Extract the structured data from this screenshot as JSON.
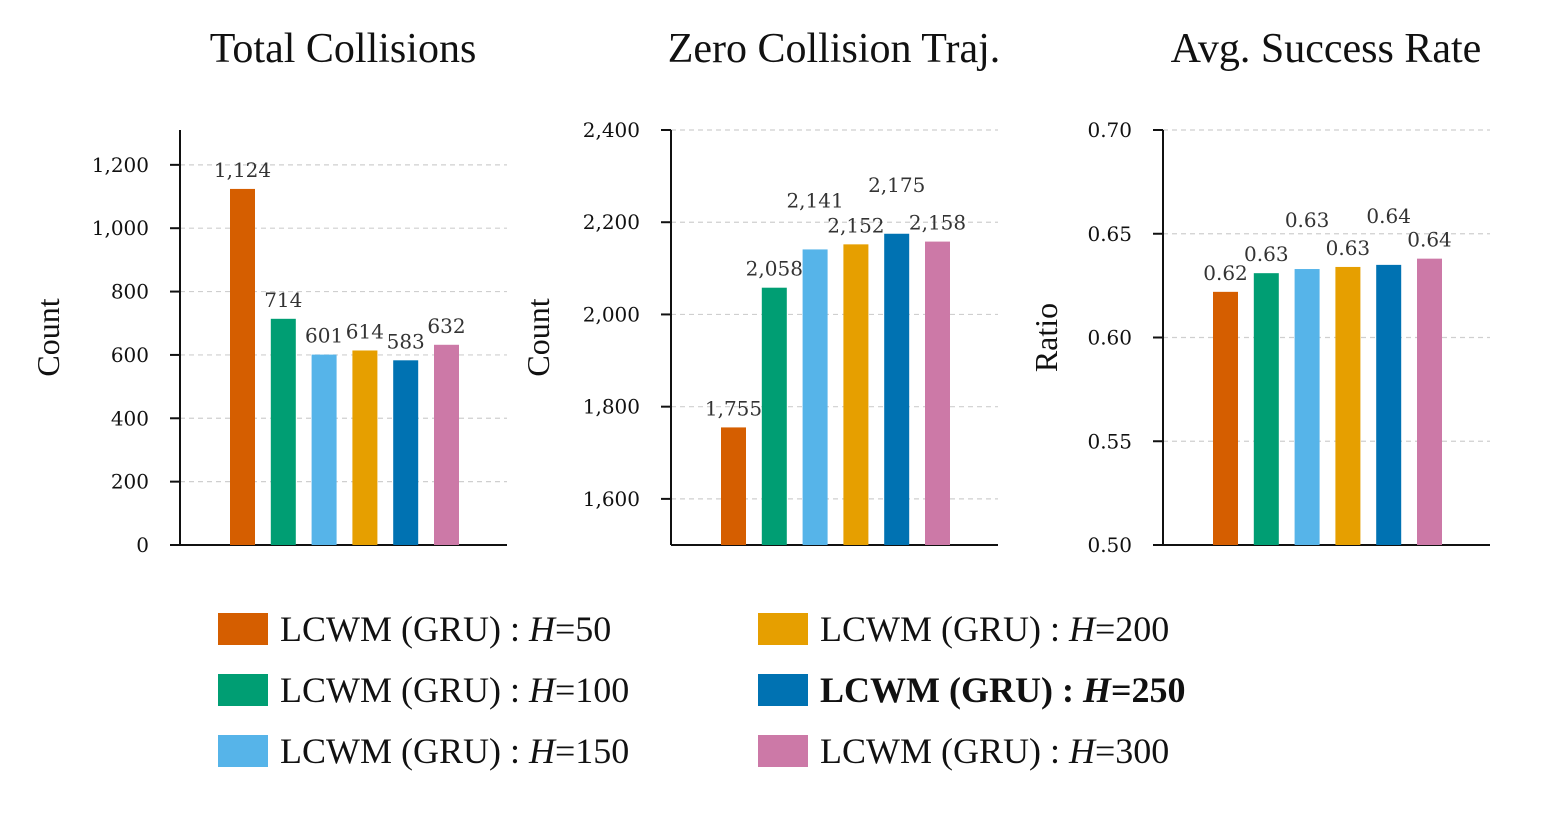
{
  "chart_data": [
    {
      "type": "bar",
      "title": "Total Collisions",
      "xlabel": "",
      "ylabel": "Count",
      "ylim": [
        0,
        1310
      ],
      "yticks": [
        0,
        200,
        400,
        600,
        800,
        1000,
        1200
      ],
      "ytick_labels": [
        "0",
        "200",
        "400",
        "600",
        "800",
        "1,000",
        "1,200"
      ],
      "categories": [
        "H=50",
        "H=100",
        "H=150",
        "H=200",
        "H=250",
        "H=300"
      ],
      "values": [
        1124,
        714,
        601,
        614,
        583,
        632
      ],
      "value_labels": [
        "1,124",
        "714",
        "601",
        "614",
        "583",
        "632"
      ],
      "grid": true
    },
    {
      "type": "bar",
      "title": "Zero Collision Traj.",
      "xlabel": "",
      "ylabel": "Count",
      "ylim": [
        1500,
        2400
      ],
      "yticks": [
        1600,
        1800,
        2000,
        2200,
        2400
      ],
      "ytick_labels": [
        "1,600",
        "1,800",
        "2,000",
        "2,200",
        "2,400"
      ],
      "categories": [
        "H=50",
        "H=100",
        "H=150",
        "H=200",
        "H=250",
        "H=300"
      ],
      "values": [
        1755,
        2058,
        2141,
        2152,
        2175,
        2158
      ],
      "value_labels": [
        "1,755",
        "2,058",
        "2,141",
        "2,152",
        "2,175",
        "2,158"
      ],
      "grid": true
    },
    {
      "type": "bar",
      "title": "Avg. Success Rate",
      "xlabel": "",
      "ylabel": "Ratio",
      "ylim": [
        0.5,
        0.7
      ],
      "yticks": [
        0.5,
        0.55,
        0.6,
        0.65,
        0.7
      ],
      "ytick_labels": [
        "0.50",
        "0.55",
        "0.60",
        "0.65",
        "0.70"
      ],
      "categories": [
        "H=50",
        "H=100",
        "H=150",
        "H=200",
        "H=250",
        "H=300"
      ],
      "values": [
        0.622,
        0.631,
        0.633,
        0.634,
        0.635,
        0.638
      ],
      "value_labels": [
        "0.62",
        "0.63",
        "0.63",
        "0.63",
        "0.64",
        "0.64"
      ],
      "grid": true
    }
  ],
  "series_colors": [
    "#D55E00",
    "#009E73",
    "#56B4E9",
    "#E69F00",
    "#0072B2",
    "#CC79A7"
  ],
  "legend": {
    "placement": "bottom",
    "items": [
      {
        "prefix": "LCWM (GRU) : ",
        "var": "H",
        "suffix": "=50",
        "bold": false
      },
      {
        "prefix": "LCWM (GRU) : ",
        "var": "H",
        "suffix": "=100",
        "bold": false
      },
      {
        "prefix": "LCWM (GRU) : ",
        "var": "H",
        "suffix": "=150",
        "bold": false
      },
      {
        "prefix": "LCWM (GRU) : ",
        "var": "H",
        "suffix": "=200",
        "bold": false
      },
      {
        "prefix": "LCWM (GRU) : ",
        "var": "H",
        "suffix": "=250",
        "bold": true
      },
      {
        "prefix": "LCWM (GRU) : ",
        "var": "H",
        "suffix": "=300",
        "bold": false
      }
    ]
  }
}
